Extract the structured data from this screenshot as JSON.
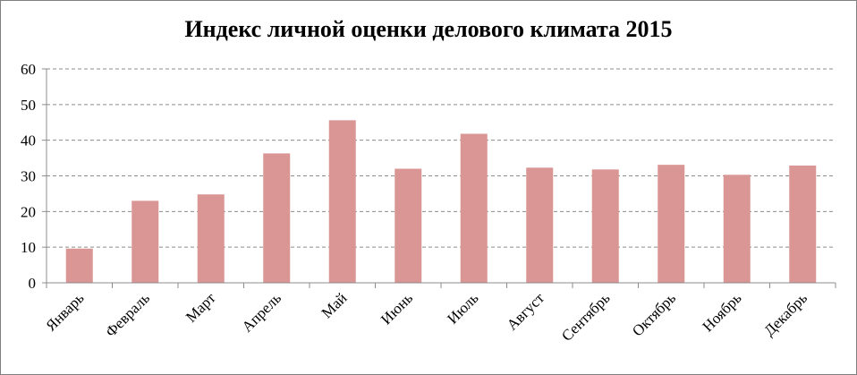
{
  "chart_data": {
    "type": "bar",
    "title": "Индекс личной оценки делового климата 2015",
    "categories": [
      "Январь",
      "Февраль",
      "Март",
      "Апрель",
      "Май",
      "Июнь",
      "Июль",
      "Август",
      "Сентябрь",
      "Октябрь",
      "Ноябрь",
      "Декабрь"
    ],
    "values": [
      9.6,
      23.0,
      24.8,
      36.3,
      45.6,
      32.0,
      41.8,
      32.3,
      31.8,
      33.1,
      30.3,
      32.9
    ],
    "ylim": [
      0,
      60
    ],
    "yticks": [
      "0",
      "10",
      "20",
      "30",
      "40",
      "50",
      "60"
    ],
    "grid": true,
    "legend": "none",
    "colors": {
      "bar": "#d99694",
      "grid": "#8c8c8c",
      "axis": "#8c8c8c"
    }
  }
}
